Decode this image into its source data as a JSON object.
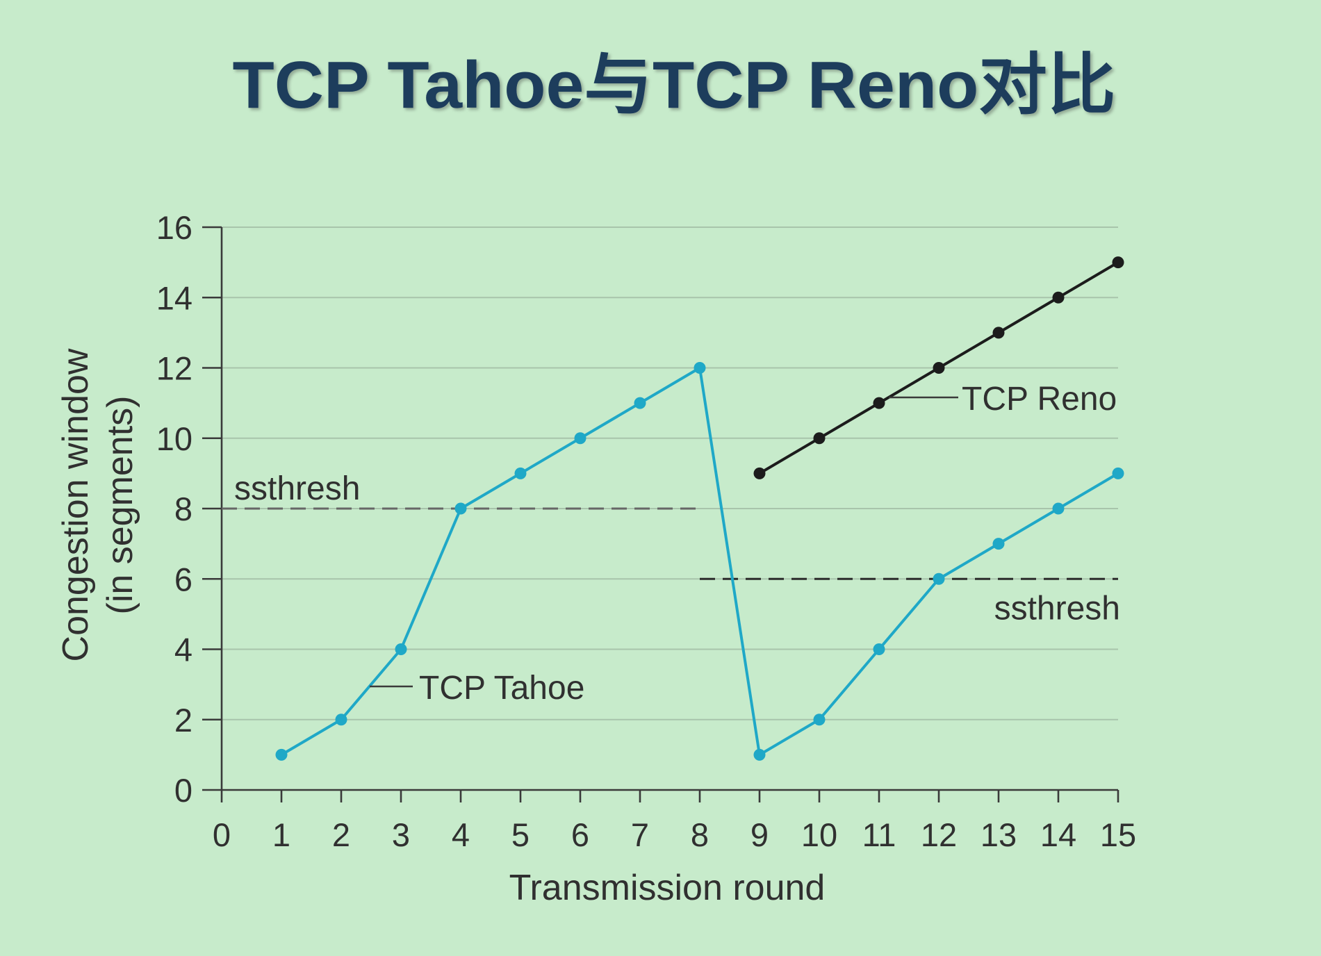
{
  "colors": {
    "page_background": "#c7ebcb",
    "title": "#1d3d5c",
    "grid": "#a8c4ab",
    "axis": "#3a3a3a",
    "text": "#303030",
    "leader": "#3a3a3a"
  },
  "chart_data": {
    "type": "line",
    "title": "TCP Tahoe与TCP Reno对比",
    "xlabel": "Transmission round",
    "ylabel": [
      "Congestion window",
      "(in segments)"
    ],
    "xlim": [
      0,
      15
    ],
    "ylim": [
      0,
      16
    ],
    "x_ticks": [
      0,
      1,
      2,
      3,
      4,
      5,
      6,
      7,
      8,
      9,
      10,
      11,
      12,
      13,
      14,
      15
    ],
    "y_ticks": [
      0,
      2,
      4,
      6,
      8,
      10,
      12,
      14,
      16
    ],
    "grid": true,
    "series": [
      {
        "name": "TCP Tahoe",
        "color": "#1fa8c7",
        "x": [
          1,
          2,
          3,
          4,
          5,
          6,
          7,
          8,
          9,
          10,
          11,
          12,
          13,
          14,
          15
        ],
        "y": [
          1,
          2,
          4,
          8,
          9,
          10,
          11,
          12,
          1,
          2,
          4,
          6,
          7,
          8,
          9
        ]
      },
      {
        "name": "TCP Reno",
        "color": "#1c1c1c",
        "x": [
          9,
          10,
          11,
          12,
          13,
          14,
          15
        ],
        "y": [
          9,
          10,
          11,
          12,
          13,
          14,
          15
        ]
      }
    ],
    "thresholds": [
      {
        "label": "ssthresh",
        "y": 8,
        "x_range": [
          0,
          8
        ],
        "color": "#666666"
      },
      {
        "label": "ssthresh",
        "y": 6,
        "x_range": [
          8,
          15
        ],
        "color": "#2b2b2b"
      }
    ]
  }
}
